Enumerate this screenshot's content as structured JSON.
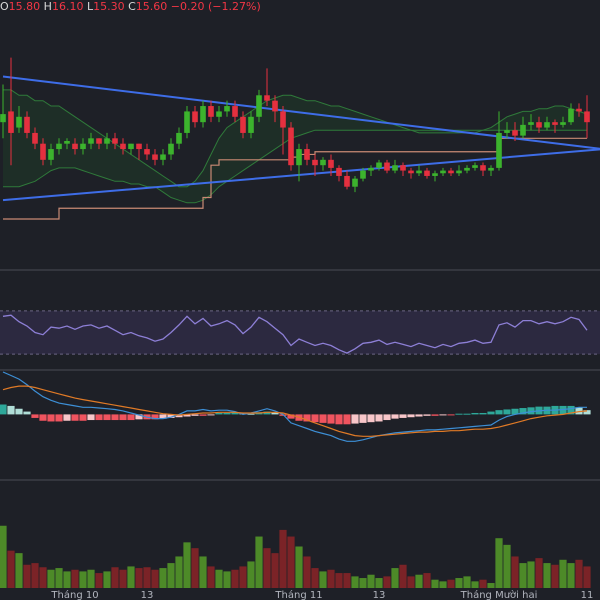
{
  "ohlc": {
    "open_label": "O",
    "open": "15.80",
    "high_label": "H",
    "high": "16.10",
    "low_label": "L",
    "low": "15.30",
    "close_label": "C",
    "close": "15.60",
    "change": "−0.20 (−1.27%)"
  },
  "colors": {
    "background": "#1e2027",
    "up": "#3cb32d",
    "down": "#e5303f",
    "trendline": "#3e6de8",
    "cloud_border": "#2f7a3a",
    "kijun": "#c98a74",
    "rsi": "#8d7fd6",
    "rsi_band": "#2c2940",
    "macd": "#3d8fd6",
    "signal": "#e07a26",
    "hist_up_strong": "#2ea89a",
    "hist_up_weak": "#b0ded7",
    "hist_down_strong": "#f0545f",
    "hist_down_weak": "#f8c6c9",
    "vol_up": "#4d8a28",
    "vol_down": "#7b2327",
    "separator": "#4a4c55",
    "axis_text": "#b2b5be"
  },
  "chart_data": {
    "type": "candlestick",
    "x_labels": [
      {
        "i": 9,
        "text": "Tháng 10"
      },
      {
        "i": 18,
        "text": "13"
      },
      {
        "i": 37,
        "text": "Tháng 11"
      },
      {
        "i": 47,
        "text": "13"
      },
      {
        "i": 62,
        "text": "Tháng Mười hai"
      },
      {
        "i": 73,
        "text": "11"
      }
    ],
    "price_axis": [
      13.0,
      17.5
    ],
    "candles": [
      [
        15.6,
        15.75,
        16.3,
        15.3
      ],
      [
        15.8,
        15.4,
        16.8,
        14.8
      ],
      [
        15.5,
        15.7,
        15.9,
        15.4
      ],
      [
        15.7,
        15.4,
        15.8,
        15.3
      ],
      [
        15.4,
        15.2,
        15.5,
        15.1
      ],
      [
        15.2,
        14.9,
        15.3,
        14.8
      ],
      [
        14.9,
        15.1,
        15.2,
        14.8
      ],
      [
        15.1,
        15.2,
        15.3,
        15.0
      ],
      [
        15.2,
        15.25,
        15.3,
        15.1
      ],
      [
        15.2,
        15.1,
        15.3,
        15.0
      ],
      [
        15.1,
        15.2,
        15.3,
        15.0
      ],
      [
        15.2,
        15.3,
        15.4,
        15.1
      ],
      [
        15.3,
        15.2,
        15.3,
        15.1
      ],
      [
        15.2,
        15.3,
        15.4,
        15.1
      ],
      [
        15.3,
        15.2,
        15.4,
        15.1
      ],
      [
        15.2,
        15.1,
        15.3,
        15.0
      ],
      [
        15.1,
        15.2,
        15.2,
        15.0
      ],
      [
        15.2,
        15.1,
        15.2,
        14.9
      ],
      [
        15.1,
        15.0,
        15.2,
        14.9
      ],
      [
        15.0,
        14.9,
        15.1,
        14.8
      ],
      [
        14.9,
        15.0,
        15.1,
        14.8
      ],
      [
        15.0,
        15.2,
        15.3,
        14.9
      ],
      [
        15.2,
        15.4,
        15.5,
        15.1
      ],
      [
        15.4,
        15.8,
        15.9,
        15.3
      ],
      [
        15.8,
        15.6,
        15.9,
        15.5
      ],
      [
        15.6,
        15.9,
        16.0,
        15.5
      ],
      [
        15.9,
        15.7,
        16.0,
        15.6
      ],
      [
        15.7,
        15.8,
        15.9,
        15.6
      ],
      [
        15.8,
        15.9,
        16.0,
        15.7
      ],
      [
        15.9,
        15.7,
        16.0,
        15.6
      ],
      [
        15.7,
        15.4,
        15.8,
        15.3
      ],
      [
        15.4,
        15.7,
        15.8,
        15.3
      ],
      [
        15.7,
        16.1,
        16.2,
        15.6
      ],
      [
        16.1,
        16.0,
        16.6,
        15.9
      ],
      [
        16.0,
        15.8,
        16.1,
        15.6
      ],
      [
        15.8,
        15.5,
        15.9,
        15.0
      ],
      [
        15.5,
        14.8,
        15.6,
        14.7
      ],
      [
        14.8,
        15.1,
        15.2,
        14.5
      ],
      [
        15.1,
        14.9,
        15.2,
        14.8
      ],
      [
        14.9,
        14.8,
        15.0,
        14.6
      ],
      [
        14.8,
        14.9,
        14.95,
        14.7
      ],
      [
        14.9,
        14.75,
        15.0,
        14.6
      ],
      [
        14.75,
        14.6,
        14.8,
        14.5
      ],
      [
        14.6,
        14.4,
        14.7,
        14.35
      ],
      [
        14.4,
        14.55,
        14.6,
        14.3
      ],
      [
        14.55,
        14.7,
        14.75,
        14.5
      ],
      [
        14.7,
        14.75,
        14.8,
        14.6
      ],
      [
        14.75,
        14.85,
        14.9,
        14.7
      ],
      [
        14.85,
        14.7,
        14.9,
        14.65
      ],
      [
        14.7,
        14.8,
        14.9,
        14.65
      ],
      [
        14.8,
        14.7,
        14.85,
        14.6
      ],
      [
        14.7,
        14.65,
        14.75,
        14.55
      ],
      [
        14.65,
        14.7,
        14.8,
        14.6
      ],
      [
        14.7,
        14.6,
        14.75,
        14.55
      ],
      [
        14.6,
        14.65,
        14.7,
        14.5
      ],
      [
        14.65,
        14.7,
        14.75,
        14.6
      ],
      [
        14.7,
        14.65,
        14.75,
        14.6
      ],
      [
        14.65,
        14.7,
        14.8,
        14.6
      ],
      [
        14.7,
        14.75,
        14.8,
        14.65
      ],
      [
        14.75,
        14.8,
        14.85,
        14.7
      ],
      [
        14.8,
        14.7,
        14.85,
        14.6
      ],
      [
        14.7,
        14.75,
        14.8,
        14.6
      ],
      [
        14.75,
        15.4,
        15.8,
        14.7
      ],
      [
        15.4,
        15.45,
        15.6,
        15.3
      ],
      [
        15.45,
        15.35,
        15.6,
        15.25
      ],
      [
        15.35,
        15.55,
        15.7,
        15.3
      ],
      [
        15.55,
        15.6,
        15.75,
        15.45
      ],
      [
        15.6,
        15.5,
        15.7,
        15.4
      ],
      [
        15.5,
        15.6,
        15.7,
        15.45
      ],
      [
        15.6,
        15.55,
        15.65,
        15.4
      ],
      [
        15.55,
        15.6,
        15.7,
        15.5
      ],
      [
        15.6,
        15.85,
        15.95,
        15.55
      ],
      [
        15.85,
        15.8,
        15.95,
        15.7
      ],
      [
        15.8,
        15.6,
        16.1,
        15.3
      ]
    ],
    "ichimoku_upper": [
      16.2,
      16.2,
      16.1,
      16.1,
      16.0,
      16.0,
      15.9,
      15.9,
      15.8,
      15.7,
      15.6,
      15.5,
      15.4,
      15.3,
      15.2,
      15.1,
      15.0,
      14.9,
      14.8,
      14.7,
      14.6,
      14.5,
      14.4,
      14.4,
      14.5,
      14.7,
      15.0,
      15.3,
      15.5,
      15.6,
      15.7,
      15.8,
      15.9,
      16.0,
      16.05,
      16.1,
      16.1,
      16.05,
      16.0,
      16.0,
      15.95,
      15.9,
      15.9,
      15.85,
      15.8,
      15.75,
      15.7,
      15.65,
      15.6,
      15.55,
      15.5,
      15.45,
      15.4,
      15.4,
      15.4,
      15.4,
      15.4,
      15.4,
      15.4,
      15.4,
      15.45,
      15.5,
      15.6,
      15.7,
      15.75,
      15.8,
      15.8,
      15.85,
      15.85,
      15.9,
      15.9,
      15.85,
      15.8,
      15.75
    ],
    "ichimoku_lower": [
      14.4,
      14.4,
      14.4,
      14.45,
      14.5,
      14.6,
      14.7,
      14.75,
      14.75,
      14.75,
      14.7,
      14.65,
      14.6,
      14.55,
      14.5,
      14.5,
      14.45,
      14.45,
      14.4,
      14.4,
      14.3,
      14.2,
      14.15,
      14.1,
      14.1,
      14.15,
      14.25,
      14.4,
      14.5,
      14.6,
      14.7,
      14.8,
      14.9,
      15.0,
      15.1,
      15.2,
      15.3,
      15.35,
      15.4,
      15.45,
      15.45,
      15.45,
      15.45,
      15.45,
      15.45,
      15.45,
      15.45,
      15.45,
      15.45,
      15.45,
      15.45,
      15.45,
      15.45,
      15.45,
      15.45,
      15.45,
      15.45,
      15.45,
      15.45,
      15.45,
      15.45,
      15.45,
      15.45,
      15.45,
      15.45,
      15.45,
      15.45,
      15.45,
      15.45,
      15.45,
      15.45,
      15.45,
      15.45,
      15.45
    ],
    "kijun": [
      13.8,
      13.8,
      13.8,
      13.8,
      13.8,
      13.8,
      13.8,
      14.0,
      14.0,
      14.0,
      14.0,
      14.0,
      14.0,
      14.0,
      14.0,
      14.0,
      14.0,
      14.0,
      14.0,
      14.0,
      14.0,
      14.0,
      14.0,
      14.0,
      14.0,
      14.2,
      14.8,
      14.9,
      14.9,
      14.9,
      14.9,
      14.9,
      14.9,
      14.9,
      14.9,
      14.9,
      14.95,
      15.0,
      15.0,
      15.05,
      15.05,
      15.05,
      15.05,
      15.05,
      15.05,
      15.05,
      15.05,
      15.05,
      15.05,
      15.05,
      15.05,
      15.05,
      15.05,
      15.05,
      15.05,
      15.05,
      15.05,
      15.05,
      15.05,
      15.05,
      15.05,
      15.05,
      15.3,
      15.3,
      15.3,
      15.3,
      15.3,
      15.3,
      15.3,
      15.3,
      15.3,
      15.3,
      15.3,
      15.3
    ],
    "trendlines": [
      {
        "from": [
          0,
          16.45
        ],
        "to": [
          75,
          15.1
        ]
      },
      {
        "from": [
          0,
          14.15
        ],
        "to": [
          75,
          15.1
        ]
      }
    ],
    "rsi": {
      "range": [
        20,
        80
      ],
      "band": [
        30,
        70
      ],
      "values": [
        65,
        66,
        60,
        56,
        50,
        48,
        55,
        54,
        56,
        53,
        56,
        57,
        54,
        56,
        52,
        48,
        50,
        47,
        45,
        42,
        44,
        50,
        57,
        65,
        58,
        63,
        56,
        58,
        61,
        57,
        49,
        55,
        64,
        60,
        54,
        48,
        38,
        44,
        41,
        38,
        40,
        38,
        34,
        31,
        35,
        40,
        41,
        43,
        39,
        41,
        39,
        37,
        40,
        38,
        36,
        39,
        37,
        40,
        41,
        43,
        40,
        41,
        57,
        59,
        55,
        61,
        61,
        58,
        60,
        58,
        60,
        64,
        62,
        52
      ]
    },
    "macd": {
      "range": [
        -0.9,
        0.6
      ],
      "macd_line": [
        0.6,
        0.55,
        0.5,
        0.42,
        0.33,
        0.25,
        0.2,
        0.16,
        0.14,
        0.12,
        0.1,
        0.1,
        0.09,
        0.08,
        0.07,
        0.05,
        0.02,
        -0.01,
        -0.04,
        -0.06,
        -0.06,
        -0.04,
        0.0,
        0.05,
        0.05,
        0.07,
        0.05,
        0.06,
        0.06,
        0.04,
        0.0,
        0.02,
        0.05,
        0.08,
        0.05,
        0.0,
        -0.12,
        -0.16,
        -0.2,
        -0.24,
        -0.27,
        -0.3,
        -0.35,
        -0.38,
        -0.38,
        -0.36,
        -0.33,
        -0.3,
        -0.28,
        -0.26,
        -0.25,
        -0.24,
        -0.23,
        -0.22,
        -0.22,
        -0.21,
        -0.2,
        -0.19,
        -0.18,
        -0.17,
        -0.16,
        -0.15,
        -0.08,
        -0.03,
        0.0,
        0.02,
        0.04,
        0.05,
        0.06,
        0.06,
        0.07,
        0.08,
        0.1,
        0.1
      ],
      "signal_line": [
        0.35,
        0.38,
        0.4,
        0.4,
        0.38,
        0.35,
        0.32,
        0.29,
        0.26,
        0.23,
        0.21,
        0.19,
        0.17,
        0.15,
        0.13,
        0.11,
        0.09,
        0.07,
        0.05,
        0.03,
        0.01,
        0.0,
        -0.01,
        0.0,
        0.01,
        0.02,
        0.02,
        0.03,
        0.03,
        0.03,
        0.02,
        0.02,
        0.02,
        0.03,
        0.03,
        0.02,
        -0.01,
        -0.04,
        -0.08,
        -0.12,
        -0.16,
        -0.2,
        -0.24,
        -0.27,
        -0.3,
        -0.31,
        -0.31,
        -0.3,
        -0.29,
        -0.28,
        -0.27,
        -0.26,
        -0.25,
        -0.25,
        -0.24,
        -0.24,
        -0.23,
        -0.23,
        -0.22,
        -0.21,
        -0.21,
        -0.2,
        -0.18,
        -0.15,
        -0.12,
        -0.09,
        -0.06,
        -0.04,
        -0.02,
        -0.01,
        0.0,
        0.02,
        0.04,
        0.05
      ],
      "histogram": [
        0.14,
        0.12,
        0.08,
        0.04,
        -0.05,
        -0.09,
        -0.1,
        -0.1,
        -0.09,
        -0.09,
        -0.09,
        -0.08,
        -0.08,
        -0.08,
        -0.08,
        -0.08,
        -0.08,
        -0.07,
        -0.07,
        -0.07,
        -0.06,
        -0.05,
        -0.04,
        -0.03,
        -0.02,
        -0.02,
        -0.01,
        0.02,
        0.02,
        0.03,
        0.02,
        0.01,
        0.03,
        0.04,
        0.03,
        -0.02,
        -0.06,
        -0.09,
        -0.1,
        -0.11,
        -0.12,
        -0.13,
        -0.14,
        -0.14,
        -0.13,
        -0.12,
        -0.11,
        -0.1,
        -0.08,
        -0.06,
        -0.05,
        -0.04,
        -0.03,
        -0.02,
        -0.02,
        -0.01,
        -0.01,
        0.01,
        0.01,
        0.02,
        0.02,
        0.04,
        0.06,
        0.07,
        0.08,
        0.09,
        0.1,
        0.11,
        0.11,
        0.12,
        0.12,
        0.12,
        0.1,
        0.06
      ]
    },
    "volume": {
      "max": 100,
      "values": [
        75,
        45,
        42,
        28,
        30,
        25,
        22,
        24,
        20,
        22,
        20,
        22,
        18,
        20,
        25,
        22,
        26,
        24,
        25,
        22,
        24,
        30,
        38,
        55,
        48,
        38,
        26,
        22,
        20,
        22,
        26,
        32,
        62,
        48,
        42,
        70,
        62,
        50,
        38,
        24,
        20,
        22,
        18,
        18,
        14,
        12,
        16,
        12,
        14,
        24,
        28,
        14,
        16,
        18,
        10,
        8,
        10,
        12,
        14,
        8,
        10,
        6,
        60,
        52,
        38,
        30,
        32,
        36,
        30,
        28,
        34,
        30,
        34,
        26
      ]
    }
  }
}
